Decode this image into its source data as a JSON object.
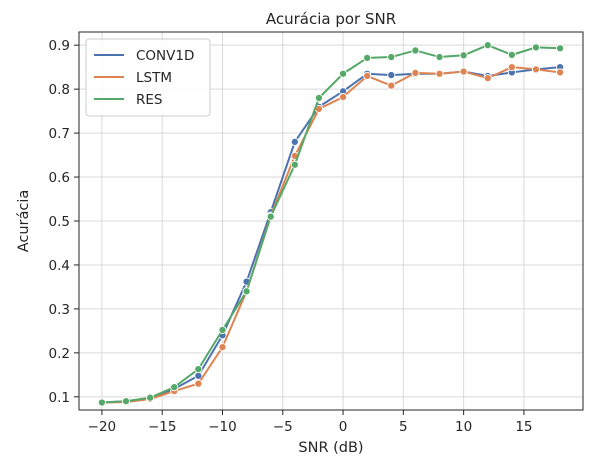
{
  "chart_data": {
    "type": "line",
    "title": "Acurácia por SNR",
    "xlabel": "SNR (dB)",
    "ylabel": "Acurácia",
    "xlim": [
      -21.9,
      19.9
    ],
    "ylim": [
      0.07,
      0.93
    ],
    "xticks": [
      -20,
      -15,
      -10,
      -5,
      0,
      5,
      10,
      15
    ],
    "xtick_labels": [
      "−20",
      "−15",
      "−10",
      "−5",
      "0",
      "5",
      "10",
      "15"
    ],
    "yticks": [
      0.1,
      0.2,
      0.3,
      0.4,
      0.5,
      0.6,
      0.7,
      0.8,
      0.9
    ],
    "ytick_labels": [
      "0.1",
      "0.2",
      "0.3",
      "0.4",
      "0.5",
      "0.6",
      "0.7",
      "0.8",
      "0.9"
    ],
    "grid": true,
    "legend_position": "top-left",
    "x": [
      -20,
      -18,
      -16,
      -14,
      -12,
      -10,
      -8,
      -6,
      -4,
      -2,
      0,
      2,
      4,
      6,
      8,
      10,
      12,
      14,
      16,
      18
    ],
    "series": [
      {
        "name": "CONV1D",
        "color": "#4c72b0",
        "values": [
          0.087,
          0.09,
          0.096,
          0.118,
          0.148,
          0.24,
          0.362,
          0.52,
          0.68,
          0.76,
          0.795,
          0.835,
          0.832,
          0.835,
          0.835,
          0.84,
          0.83,
          0.838,
          0.845,
          0.85
        ]
      },
      {
        "name": "LSTM",
        "color": "#dd8452",
        "values": [
          0.087,
          0.088,
          0.095,
          0.113,
          0.13,
          0.213,
          0.34,
          0.512,
          0.648,
          0.755,
          0.782,
          0.83,
          0.808,
          0.837,
          0.835,
          0.84,
          0.825,
          0.85,
          0.845,
          0.838
        ]
      },
      {
        "name": "RES",
        "color": "#55a868",
        "values": [
          0.087,
          0.09,
          0.098,
          0.122,
          0.163,
          0.252,
          0.34,
          0.51,
          0.628,
          0.78,
          0.835,
          0.871,
          0.873,
          0.888,
          0.873,
          0.877,
          0.9,
          0.878,
          0.895,
          0.893
        ]
      }
    ]
  }
}
